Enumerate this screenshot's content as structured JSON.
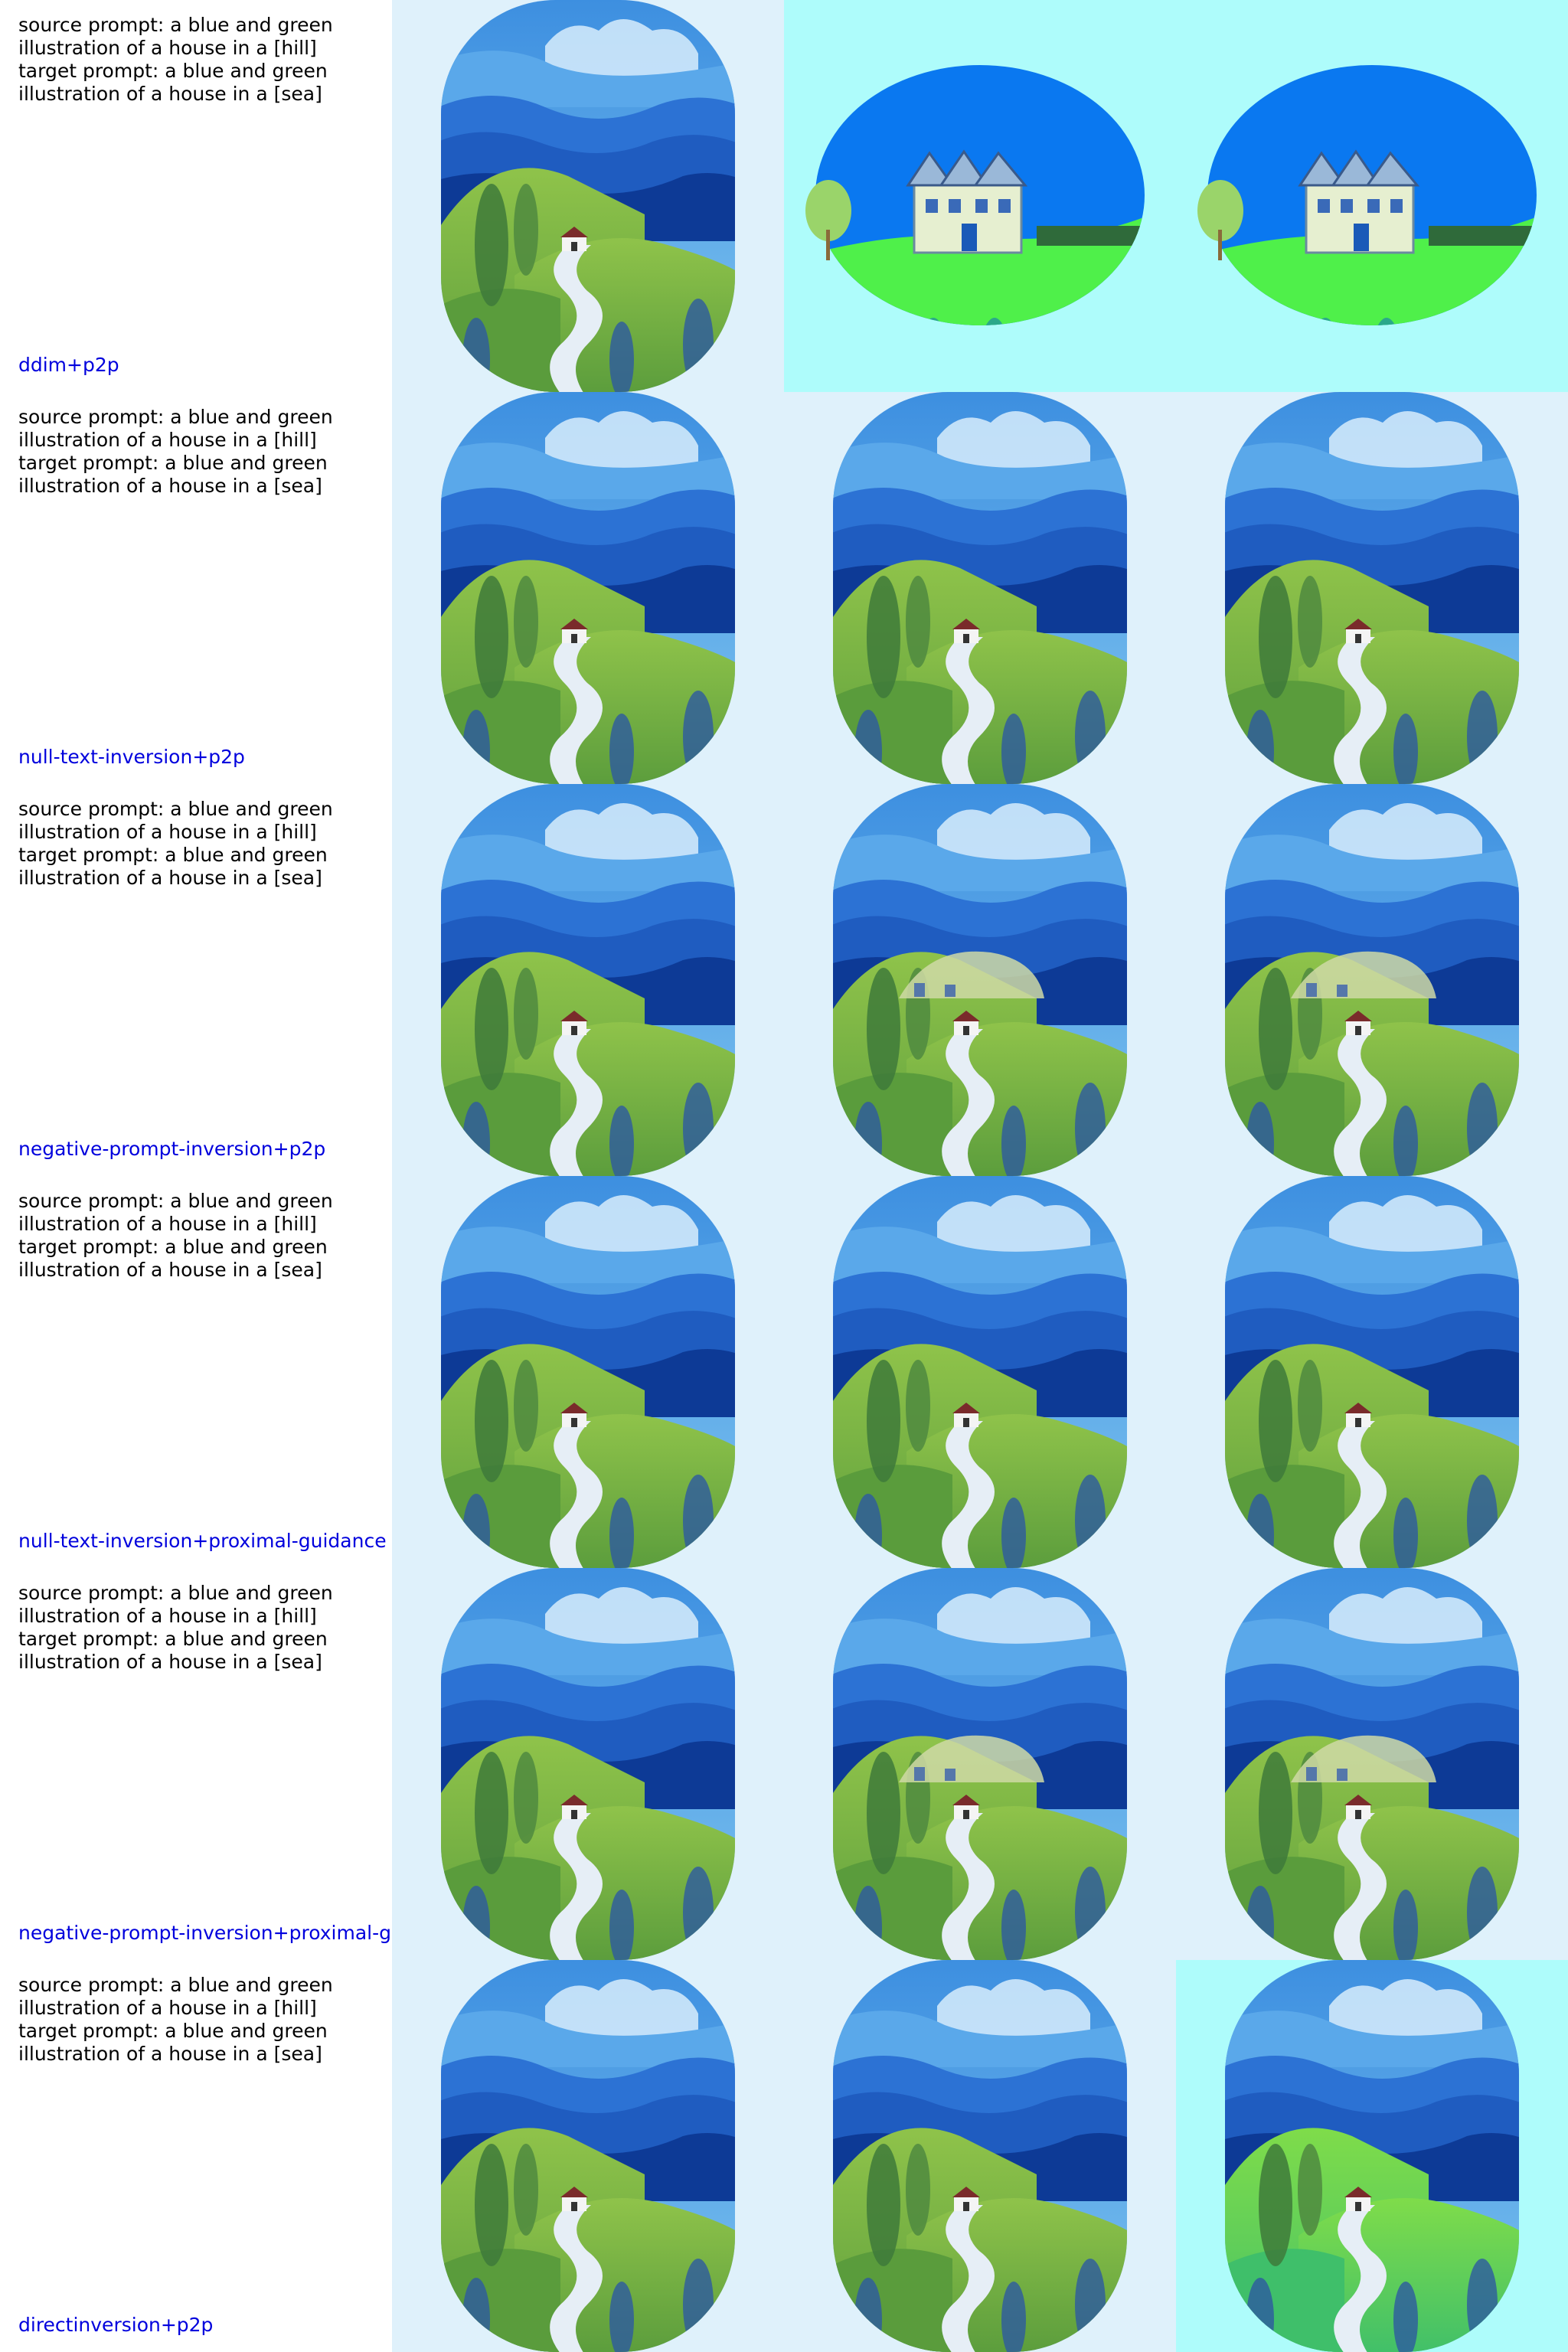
{
  "rows": [
    {
      "source_prompt": "source prompt: a blue and green illustration of a house in a [hill]",
      "target_prompt": "target prompt: a blue and green illustration of a house in a [sea]",
      "method": "ddim+p2p"
    },
    {
      "source_prompt": "source prompt: a blue and green illustration of a house in a [hill]",
      "target_prompt": "target prompt: a blue and green illustration of a house in a [sea]",
      "method": "null-text-inversion+p2p"
    },
    {
      "source_prompt": "source prompt: a blue and green illustration of a house in a [hill]",
      "target_prompt": "target prompt: a blue and green illustration of a house in a [sea]",
      "method": "negative-prompt-inversion+p2p"
    },
    {
      "source_prompt": "source prompt: a blue and green illustration of a house in a [hill]",
      "target_prompt": "target prompt: a blue and green illustration of a house in a [sea]",
      "method": "null-text-inversion+proximal-guidance"
    },
    {
      "source_prompt": "source prompt: a blue and green illustration of a house in a [hill]",
      "target_prompt": "target prompt: a blue and green illustration of a house in a [sea]",
      "method": "negative-prompt-inversion+proximal-guidance"
    },
    {
      "source_prompt": "source prompt: a blue and green illustration of a house in a [hill]",
      "target_prompt": "target prompt: a blue and green illustration of a house in a [sea]",
      "method": "directinversion+p2p"
    }
  ],
  "colors": {
    "label_text": "#000000",
    "method_text": "#0000dd",
    "panel_bg_light": "#dff1fb",
    "panel_bg_cyan": "#aefcfb"
  }
}
